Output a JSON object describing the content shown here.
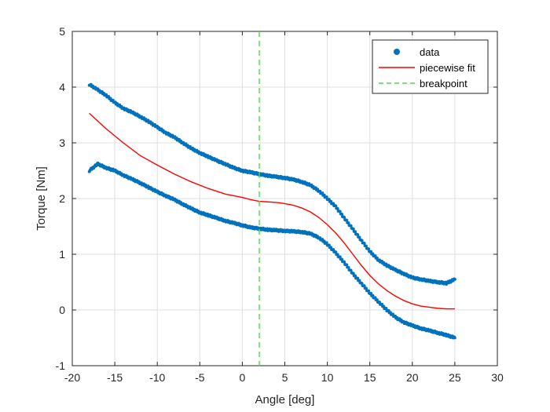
{
  "chart_data": {
    "type": "scatter",
    "title": "",
    "xlabel": "Angle [deg]",
    "ylabel": "Torque [Nm]",
    "xlim": [
      -20,
      30
    ],
    "ylim": [
      -1,
      5
    ],
    "xticks": [
      -20,
      -15,
      -10,
      -5,
      0,
      5,
      10,
      15,
      20,
      25,
      30
    ],
    "yticks": [
      -1,
      0,
      1,
      2,
      3,
      4,
      5
    ],
    "grid": true,
    "legend_position": "top-right",
    "legend": [
      "data",
      "piecewise fit",
      "breakpoint"
    ],
    "series": [
      {
        "name": "data",
        "kind": "points",
        "color": "#0072BD",
        "branches": [
          {
            "label": "upper",
            "x": [
              -18,
              -17,
              -16,
              -15,
              -14,
              -13,
              -12,
              -11,
              -10,
              -9,
              -8,
              -7,
              -6,
              -5,
              -4,
              -3,
              -2,
              -1,
              0,
              1,
              2,
              3,
              4,
              5,
              6,
              7,
              8,
              9,
              10,
              11,
              12,
              13,
              14,
              15,
              16,
              17,
              18,
              19,
              20,
              21,
              22,
              23,
              24,
              25
            ],
            "y": [
              4.05,
              3.95,
              3.85,
              3.72,
              3.62,
              3.55,
              3.47,
              3.38,
              3.28,
              3.18,
              3.1,
              3.0,
              2.9,
              2.82,
              2.75,
              2.68,
              2.62,
              2.55,
              2.5,
              2.47,
              2.44,
              2.41,
              2.39,
              2.37,
              2.34,
              2.3,
              2.24,
              2.14,
              2.0,
              1.85,
              1.65,
              1.45,
              1.25,
              1.05,
              0.9,
              0.8,
              0.72,
              0.65,
              0.58,
              0.55,
              0.52,
              0.5,
              0.48,
              0.55
            ]
          },
          {
            "label": "lower",
            "x": [
              -18,
              -17,
              -16,
              -15,
              -14,
              -13,
              -12,
              -11,
              -10,
              -9,
              -8,
              -7,
              -6,
              -5,
              -4,
              -3,
              -2,
              -1,
              0,
              1,
              2,
              3,
              4,
              5,
              6,
              7,
              8,
              9,
              10,
              11,
              12,
              13,
              14,
              15,
              16,
              17,
              18,
              19,
              20,
              21,
              22,
              23,
              24,
              25
            ],
            "y": [
              2.5,
              2.62,
              2.55,
              2.5,
              2.42,
              2.35,
              2.28,
              2.2,
              2.12,
              2.05,
              1.98,
              1.9,
              1.82,
              1.75,
              1.7,
              1.65,
              1.6,
              1.56,
              1.52,
              1.48,
              1.46,
              1.44,
              1.43,
              1.42,
              1.41,
              1.4,
              1.37,
              1.3,
              1.18,
              1.02,
              0.85,
              0.65,
              0.48,
              0.3,
              0.15,
              0.0,
              -0.13,
              -0.22,
              -0.28,
              -0.33,
              -0.37,
              -0.41,
              -0.45,
              -0.5
            ]
          }
        ]
      },
      {
        "name": "piecewise fit",
        "kind": "line",
        "color": "#FF0000",
        "x": [
          -18,
          -16,
          -14,
          -12,
          -10,
          -8,
          -6,
          -4,
          -2,
          0,
          1,
          2,
          3,
          4,
          5,
          6,
          7,
          8,
          9,
          10,
          11,
          12,
          13,
          14,
          15,
          16,
          17,
          18,
          19,
          20,
          21,
          22,
          23,
          24,
          25
        ],
        "y": [
          3.53,
          3.25,
          3.0,
          2.77,
          2.6,
          2.44,
          2.3,
          2.18,
          2.08,
          2.02,
          1.98,
          1.95,
          1.94,
          1.93,
          1.91,
          1.88,
          1.83,
          1.76,
          1.66,
          1.53,
          1.38,
          1.2,
          1.0,
          0.8,
          0.62,
          0.47,
          0.35,
          0.25,
          0.17,
          0.11,
          0.07,
          0.05,
          0.03,
          0.02,
          0.02
        ]
      },
      {
        "name": "breakpoint",
        "kind": "vline",
        "color": "#4DDB4D",
        "x": 2,
        "dash": true
      }
    ]
  }
}
